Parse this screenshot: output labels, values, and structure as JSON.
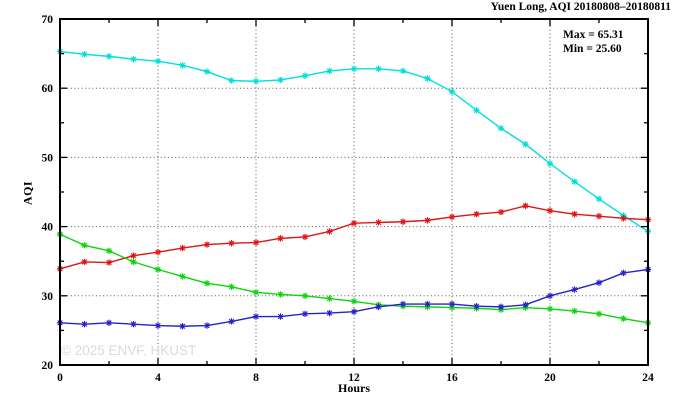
{
  "chart_data": {
    "type": "line",
    "title": "Yuen Long, AQI 20180808–20180811",
    "xlabel": "Hours",
    "ylabel": "AQI",
    "xlim": [
      0,
      24
    ],
    "ylim": [
      20,
      70
    ],
    "x_major_ticks": [
      0,
      4,
      8,
      12,
      16,
      20,
      24
    ],
    "x_minor_ticks": [
      2,
      6,
      10,
      14,
      18,
      22
    ],
    "y_major_ticks": [
      20,
      30,
      40,
      50,
      60,
      70
    ],
    "y_minor_ticks": [
      25,
      35,
      45,
      55,
      65
    ],
    "x_gridlines": [
      4,
      8,
      12,
      16,
      20
    ],
    "y_gridlines": [
      30,
      40,
      50,
      60
    ],
    "grid": "dotted",
    "legend_position": "top-right-inside",
    "frame": "box-with-inward-ticks",
    "marker": "asterisk",
    "annotations": {
      "max_label": "Max = 65.31",
      "min_label": "Min = 25.60"
    },
    "watermark": "© 2025 ENVF, HKUST",
    "axis_color": "#000000",
    "grid_color": "#555555",
    "x": [
      0,
      1,
      2,
      3,
      4,
      5,
      6,
      7,
      8,
      9,
      10,
      11,
      12,
      13,
      14,
      15,
      16,
      17,
      18,
      19,
      20,
      21,
      22,
      23,
      24
    ],
    "series": [
      {
        "name": "cyan-series",
        "color": "#00dfe0",
        "values": [
          65.31,
          64.9,
          64.6,
          64.2,
          63.9,
          63.3,
          62.4,
          61.1,
          61.0,
          61.2,
          61.8,
          62.5,
          62.8,
          62.8,
          62.5,
          61.4,
          59.5,
          56.8,
          54.2,
          51.9,
          49.1,
          46.5,
          44.0,
          41.6,
          39.3
        ]
      },
      {
        "name": "red-series",
        "color": "#e01414",
        "values": [
          33.9,
          34.9,
          34.8,
          35.8,
          36.3,
          36.9,
          37.4,
          37.6,
          37.7,
          38.3,
          38.5,
          39.3,
          40.5,
          40.6,
          40.7,
          40.9,
          41.4,
          41.8,
          42.1,
          43.0,
          42.3,
          41.8,
          41.5,
          41.2,
          41.0
        ]
      },
      {
        "name": "green-series",
        "color": "#0ed40e",
        "values": [
          38.9,
          37.3,
          36.5,
          34.9,
          33.8,
          32.8,
          31.8,
          31.3,
          30.5,
          30.2,
          30.0,
          29.6,
          29.2,
          28.7,
          28.5,
          28.4,
          28.3,
          28.2,
          28.0,
          28.3,
          28.1,
          27.8,
          27.4,
          26.7,
          26.1
        ]
      },
      {
        "name": "blue-series",
        "color": "#2424cc",
        "values": [
          26.1,
          25.9,
          26.1,
          25.9,
          25.7,
          25.6,
          25.7,
          26.3,
          27.0,
          27.0,
          27.4,
          27.5,
          27.7,
          28.4,
          28.8,
          28.8,
          28.8,
          28.5,
          28.4,
          28.7,
          30.0,
          30.9,
          31.9,
          33.3,
          33.8
        ]
      }
    ]
  }
}
